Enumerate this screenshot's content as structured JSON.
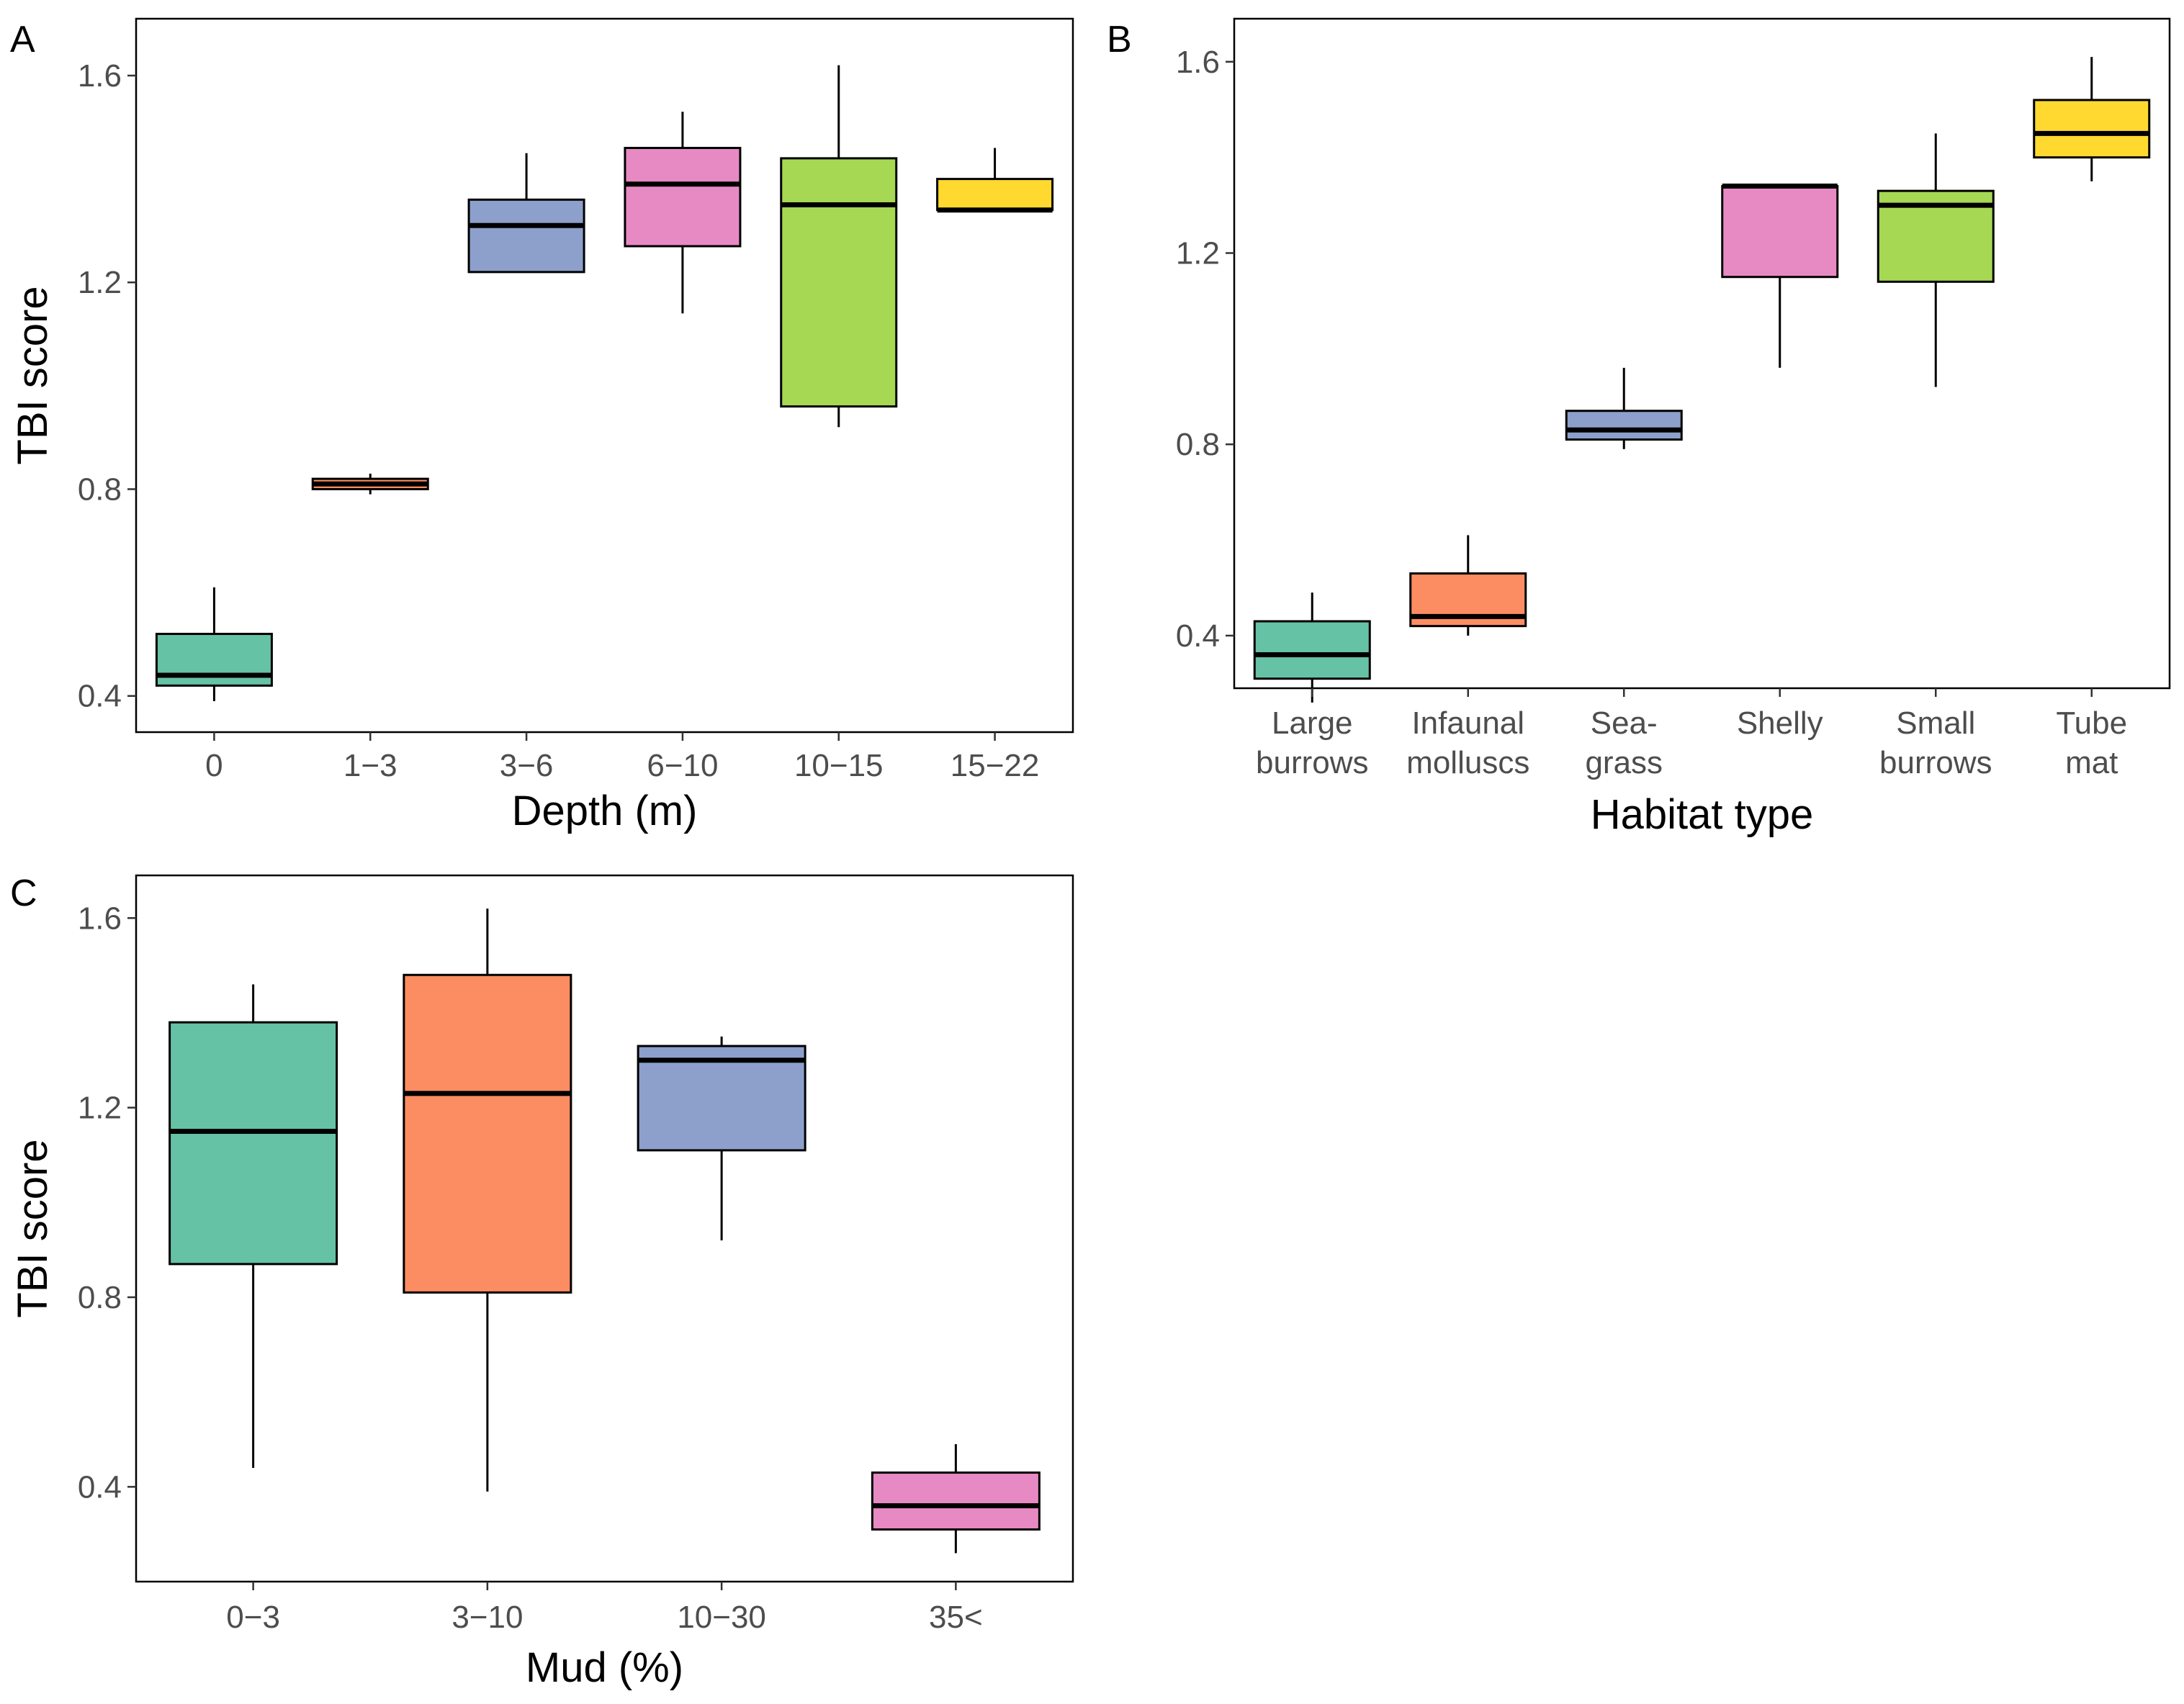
{
  "chart_data": [
    {
      "panel": "A",
      "type": "box",
      "xlabel": "Depth (m)",
      "ylabel": "TBI score",
      "ylim": [
        0.33,
        1.71
      ],
      "yticks": [
        "0.4",
        "0.8",
        "1.2",
        "1.6"
      ],
      "categories": [
        [
          "0"
        ],
        [
          "1−3"
        ],
        [
          "3−6"
        ],
        [
          "6−10"
        ],
        [
          "10−15"
        ],
        [
          "15−22"
        ]
      ],
      "boxes": [
        {
          "min": 0.39,
          "q1": 0.42,
          "median": 0.44,
          "q3": 0.52,
          "max": 0.61,
          "color": "#66C2A5"
        },
        {
          "min": 0.79,
          "q1": 0.8,
          "median": 0.81,
          "q3": 0.82,
          "max": 0.83,
          "color": "#FC8D62"
        },
        {
          "min": 1.22,
          "q1": 1.22,
          "median": 1.31,
          "q3": 1.36,
          "max": 1.45,
          "color": "#8DA0CB"
        },
        {
          "min": 1.14,
          "q1": 1.27,
          "median": 1.39,
          "q3": 1.46,
          "max": 1.53,
          "color": "#E78AC3"
        },
        {
          "min": 0.92,
          "q1": 0.96,
          "median": 1.35,
          "q3": 1.44,
          "max": 1.62,
          "color": "#A6D854"
        },
        {
          "min": 1.34,
          "q1": 1.34,
          "median": 1.34,
          "q3": 1.4,
          "max": 1.46,
          "color": "#FFD92F"
        }
      ]
    },
    {
      "panel": "B",
      "type": "box",
      "xlabel": "Habitat type",
      "ylabel": "",
      "ylim": [
        0.29,
        1.69
      ],
      "yticks": [
        "0.4",
        "0.8",
        "1.2",
        "1.6"
      ],
      "categories": [
        [
          "Large",
          "burrows"
        ],
        [
          "Infaunal",
          "molluscs"
        ],
        [
          "Sea-",
          "grass"
        ],
        [
          "Shelly"
        ],
        [
          "Small",
          "burrows"
        ],
        [
          "Tube",
          "mat"
        ]
      ],
      "boxes": [
        {
          "min": 0.26,
          "q1": 0.31,
          "median": 0.36,
          "q3": 0.43,
          "max": 0.49,
          "color": "#66C2A5"
        },
        {
          "min": 0.4,
          "q1": 0.42,
          "median": 0.44,
          "q3": 0.53,
          "max": 0.61,
          "color": "#FC8D62"
        },
        {
          "min": 0.79,
          "q1": 0.81,
          "median": 0.83,
          "q3": 0.87,
          "max": 0.96,
          "color": "#8DA0CB"
        },
        {
          "min": 0.96,
          "q1": 1.15,
          "median": 1.34,
          "q3": 1.34,
          "max": 1.34,
          "color": "#E78AC3"
        },
        {
          "min": 0.92,
          "q1": 1.14,
          "median": 1.3,
          "q3": 1.33,
          "max": 1.45,
          "color": "#A6D854"
        },
        {
          "min": 1.35,
          "q1": 1.4,
          "median": 1.45,
          "q3": 1.52,
          "max": 1.61,
          "color": "#FFD92F"
        }
      ]
    },
    {
      "panel": "C",
      "type": "box",
      "xlabel": "Mud (%)",
      "ylabel": "TBI score",
      "ylim": [
        0.2,
        1.69
      ],
      "yticks": [
        "0.4",
        "0.8",
        "1.2",
        "1.6"
      ],
      "categories": [
        [
          "0−3"
        ],
        [
          "3−10"
        ],
        [
          "10−30"
        ],
        [
          "35<"
        ]
      ],
      "boxes": [
        {
          "min": 0.44,
          "q1": 0.87,
          "median": 1.15,
          "q3": 1.38,
          "max": 1.46,
          "color": "#66C2A5"
        },
        {
          "min": 0.39,
          "q1": 0.81,
          "median": 1.23,
          "q3": 1.48,
          "max": 1.62,
          "color": "#FC8D62"
        },
        {
          "min": 0.92,
          "q1": 1.11,
          "median": 1.3,
          "q3": 1.33,
          "max": 1.35,
          "color": "#8DA0CB"
        },
        {
          "min": 0.26,
          "q1": 0.31,
          "median": 0.36,
          "q3": 0.43,
          "max": 0.49,
          "color": "#E78AC3"
        }
      ]
    }
  ]
}
